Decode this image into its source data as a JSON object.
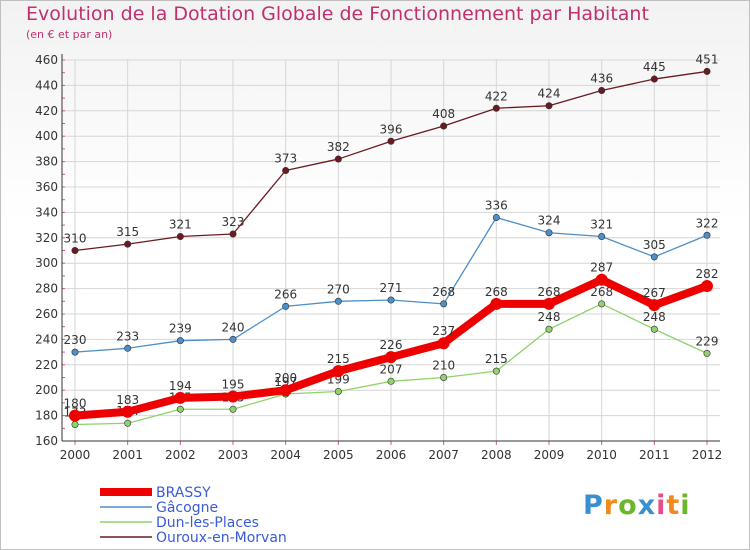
{
  "title": "Evolution de la Dotation Globale de Fonctionnement par Habitant",
  "subtitle": "(en € et par an)",
  "logo_text": "Proxiti",
  "chart_data": {
    "type": "line",
    "x": [
      2000,
      2001,
      2002,
      2003,
      2004,
      2005,
      2006,
      2007,
      2008,
      2009,
      2010,
      2011,
      2012
    ],
    "ylim": [
      160,
      460
    ],
    "yticks": [
      160,
      180,
      200,
      220,
      240,
      260,
      280,
      300,
      320,
      340,
      360,
      380,
      400,
      420,
      440,
      460
    ],
    "grid": true,
    "legend_position": "bottom-left",
    "series": [
      {
        "name": "Ouroux-en-Morvan",
        "color": "#6b1a22",
        "values": [
          310,
          315,
          321,
          323,
          373,
          382,
          396,
          408,
          422,
          424,
          436,
          445,
          451
        ]
      },
      {
        "name": "Gâcogne",
        "color": "#4d8fc7",
        "values": [
          230,
          233,
          239,
          240,
          266,
          270,
          271,
          268,
          336,
          324,
          321,
          305,
          322
        ]
      },
      {
        "name": "Dun-les-Places",
        "color": "#8fd36a",
        "values": [
          173,
          174,
          185,
          185,
          197,
          199,
          207,
          210,
          215,
          248,
          268,
          248,
          229
        ]
      },
      {
        "name": "BRASSY",
        "color": "#ee0000",
        "values": [
          180,
          183,
          194,
          195,
          200,
          215,
          226,
          237,
          268,
          268,
          287,
          267,
          282
        ]
      }
    ],
    "legend_order": [
      "BRASSY",
      "Gâcogne",
      "Dun-les-Places",
      "Ouroux-en-Morvan"
    ]
  }
}
